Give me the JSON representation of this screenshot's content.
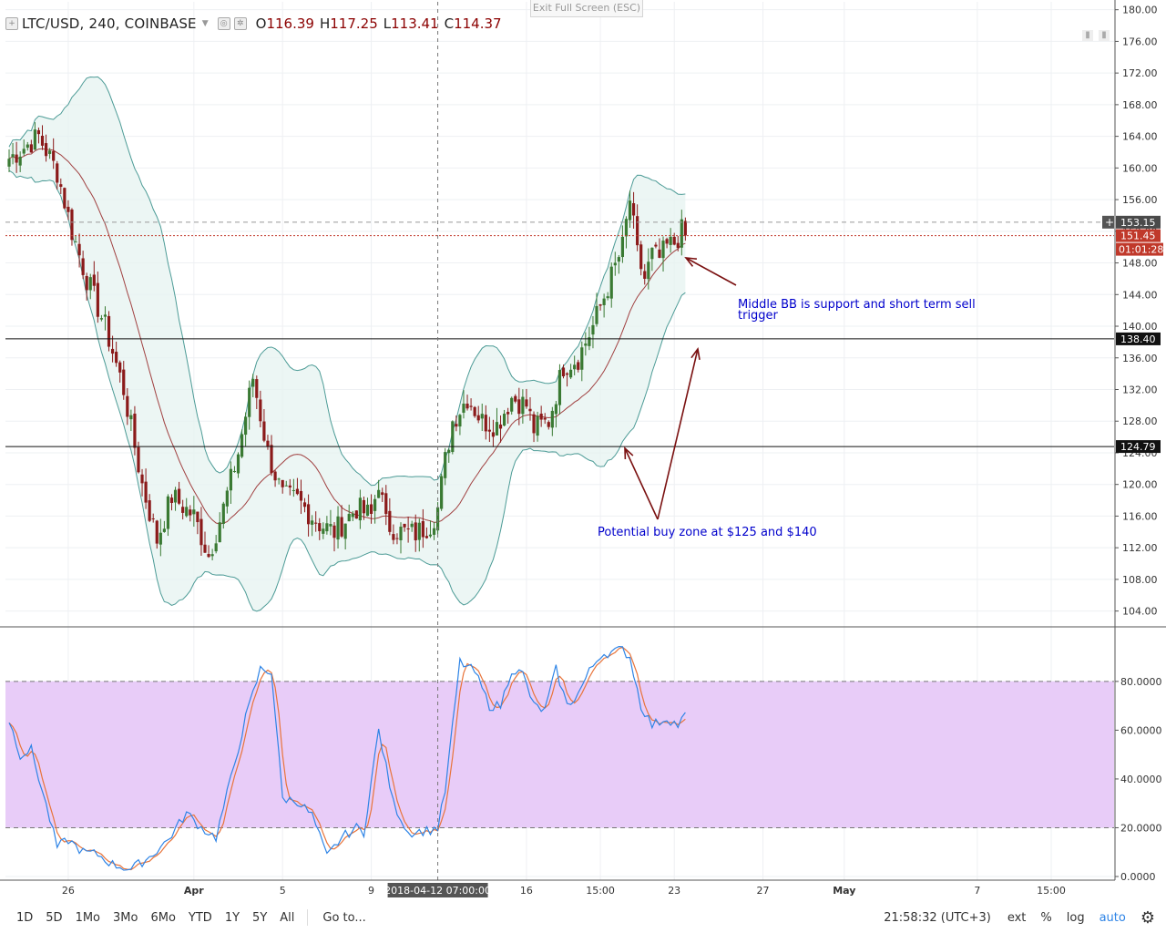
{
  "legend": {
    "symbol": "LTC/USD, 240, COINBASE",
    "o_label": "O",
    "o": "116.39",
    "h_label": "H",
    "h": "117.25",
    "l_label": "L",
    "l": "113.41",
    "c_label": "C",
    "c": "114.37"
  },
  "exit_fullscreen": "Exit Full Screen (ESC)",
  "chart_data": [
    {
      "type": "candlestick",
      "title": "LTC/USD, 240, COINBASE",
      "ylim": [
        102,
        181
      ],
      "y_ticks": [
        "180.00",
        "176.00",
        "172.00",
        "168.00",
        "164.00",
        "160.00",
        "156.00",
        "152.00",
        "148.00",
        "144.00",
        "140.00",
        "136.00",
        "132.00",
        "128.00",
        "124.00",
        "120.00",
        "116.00",
        "112.00",
        "108.00",
        "104.00"
      ],
      "x_ticks": [
        {
          "label": "26",
          "i": 16
        },
        {
          "label": "Apr",
          "i": 50
        },
        {
          "label": "5",
          "i": 74
        },
        {
          "label": "9",
          "i": 98
        },
        {
          "label": "16",
          "i": 140
        },
        {
          "label": "15:00",
          "i": 160
        },
        {
          "label": "23",
          "i": 180
        },
        {
          "label": "27",
          "i": 204
        },
        {
          "label": "May",
          "i": 226
        },
        {
          "label": "7",
          "i": 262
        },
        {
          "label": "15:00",
          "i": 282
        }
      ],
      "crosshair": {
        "i": 116,
        "label": "2018-04-12 07:00:00"
      },
      "candle_colors": {
        "up": "#3a7a33",
        "down": "#8b1a1a"
      },
      "bb_fill": "#e6f3f0",
      "bb_line": "#4c9b96",
      "mid_line": "#a04040",
      "horizontal_levels": [
        {
          "value": 138.4,
          "label": "138.40",
          "color": "#111111"
        },
        {
          "value": 124.79,
          "label": "124.79",
          "color": "#111111"
        }
      ],
      "price_labels": [
        {
          "value": 153.15,
          "label": "153.15",
          "color": "#4a4a4a",
          "style": "dashed-grey"
        },
        {
          "value": 151.45,
          "label": "151.45",
          "color": "#c0392b",
          "style": "dotted-red"
        }
      ],
      "countdown": "01:01:28",
      "annotations": [
        {
          "text": "Middle BB is support and short term sell",
          "line2": "trigger",
          "color": "#0000cc"
        },
        {
          "text": "Potential buy zone at $125 and $140",
          "color": "#0000cc"
        }
      ],
      "anchors": [
        [
          0,
          161.2
        ],
        [
          8,
          164.0
        ],
        [
          13,
          159.5
        ],
        [
          17,
          152.0
        ],
        [
          21,
          146.0
        ],
        [
          26,
          140.0
        ],
        [
          31,
          132.0
        ],
        [
          36,
          120.0
        ],
        [
          40,
          113.0
        ],
        [
          44,
          118.5
        ],
        [
          50,
          116.0
        ],
        [
          54,
          111.0
        ],
        [
          58,
          117.0
        ],
        [
          62,
          124.0
        ],
        [
          66,
          133.5
        ],
        [
          70,
          124.0
        ],
        [
          74,
          118.5
        ],
        [
          78,
          118.0
        ],
        [
          84,
          115.0
        ],
        [
          88,
          114.0
        ],
        [
          94,
          117.0
        ],
        [
          98,
          116.0
        ],
        [
          100,
          120.5
        ],
        [
          102,
          115.0
        ],
        [
          106,
          114.0
        ],
        [
          110,
          113.8
        ],
        [
          114,
          115.0
        ],
        [
          116,
          117.0
        ],
        [
          118,
          123.0
        ],
        [
          120,
          128.0
        ],
        [
          124,
          131.0
        ],
        [
          128,
          128.0
        ],
        [
          132,
          127.5
        ],
        [
          136,
          131.0
        ],
        [
          140,
          130.0
        ],
        [
          142,
          127.0
        ],
        [
          146,
          128.0
        ],
        [
          150,
          135.0
        ],
        [
          154,
          136.0
        ],
        [
          158,
          140.0
        ],
        [
          162,
          145.0
        ],
        [
          166,
          150.0
        ],
        [
          168,
          156.0
        ],
        [
          170,
          149.0
        ],
        [
          172,
          146.0
        ],
        [
          174,
          149.0
        ],
        [
          176,
          148.5
        ],
        [
          178,
          150.0
        ],
        [
          180,
          150.5
        ],
        [
          182,
          152.0
        ],
        [
          183,
          151.3
        ]
      ],
      "stochastic": {
        "type": "line",
        "ylim": [
          -1.5,
          102
        ],
        "y_ticks": [
          "80.0000",
          "60.0000",
          "40.0000",
          "20.0000",
          "0.0000"
        ],
        "band": [
          20,
          80
        ],
        "band_fill": "#e8ccf8",
        "k_color": "#2e84e6",
        "d_color": "#e8743b",
        "anchors": [
          [
            0,
            64
          ],
          [
            3,
            50
          ],
          [
            6,
            52
          ],
          [
            9,
            35
          ],
          [
            13,
            12
          ],
          [
            16,
            15
          ],
          [
            20,
            10
          ],
          [
            24,
            9
          ],
          [
            28,
            5
          ],
          [
            33,
            3
          ],
          [
            38,
            8
          ],
          [
            43,
            15
          ],
          [
            48,
            26
          ],
          [
            52,
            20
          ],
          [
            56,
            16
          ],
          [
            60,
            40
          ],
          [
            64,
            65
          ],
          [
            68,
            85
          ],
          [
            71,
            84
          ],
          [
            74,
            32
          ],
          [
            78,
            31
          ],
          [
            82,
            25
          ],
          [
            86,
            8
          ],
          [
            90,
            16
          ],
          [
            94,
            20
          ],
          [
            96,
            18
          ],
          [
            100,
            60
          ],
          [
            104,
            30
          ],
          [
            108,
            18
          ],
          [
            114,
            19
          ],
          [
            116,
            20
          ],
          [
            118,
            35
          ],
          [
            122,
            88
          ],
          [
            126,
            84
          ],
          [
            130,
            70
          ],
          [
            133,
            70
          ],
          [
            136,
            85
          ],
          [
            139,
            83
          ],
          [
            142,
            70
          ],
          [
            145,
            68
          ],
          [
            148,
            85
          ],
          [
            151,
            70
          ],
          [
            154,
            75
          ],
          [
            157,
            84
          ],
          [
            160,
            91
          ],
          [
            163,
            92
          ],
          [
            166,
            93
          ],
          [
            168,
            90
          ],
          [
            171,
            70
          ],
          [
            174,
            62
          ],
          [
            178,
            65
          ],
          [
            181,
            62
          ],
          [
            183,
            66
          ]
        ]
      }
    }
  ],
  "toolbar": {
    "ranges": [
      "1D",
      "5D",
      "1Mo",
      "3Mo",
      "6Mo",
      "YTD",
      "1Y",
      "5Y",
      "All"
    ],
    "goto": "Go to...",
    "clock": "21:58:32 (UTC+3)",
    "ext": "ext",
    "percent": "%",
    "log": "log",
    "auto": "auto"
  }
}
